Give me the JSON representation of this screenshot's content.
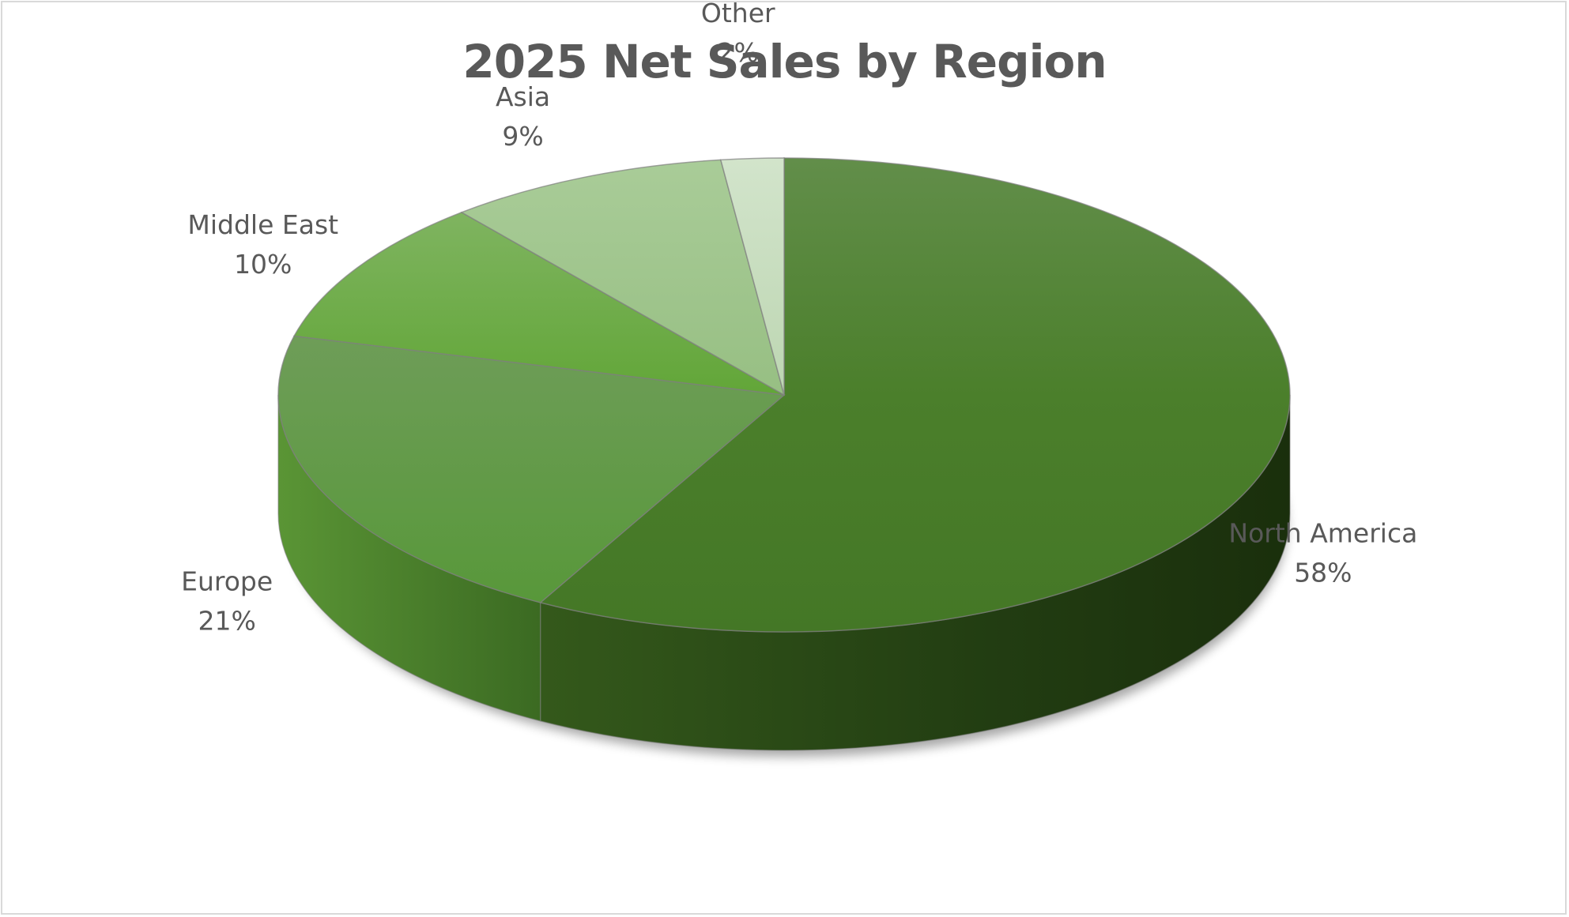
{
  "chart_data": {
    "type": "pie",
    "title": "2025 Net Sales by Region",
    "style": "3d",
    "slices": [
      {
        "name": "North America",
        "value": 58,
        "label": "58%",
        "color": "#4e7f2c"
      },
      {
        "name": "Europe",
        "value": 21,
        "label": "21%",
        "color": "#5f9a3a"
      },
      {
        "name": "Middle East",
        "value": 10,
        "label": "10%",
        "color": "#6aa83f"
      },
      {
        "name": "Asia",
        "value": 9,
        "label": "9%",
        "color": "#9ec58b"
      },
      {
        "name": "Other",
        "value": 2,
        "label": "2%",
        "color": "#c7dcbf"
      }
    ]
  }
}
